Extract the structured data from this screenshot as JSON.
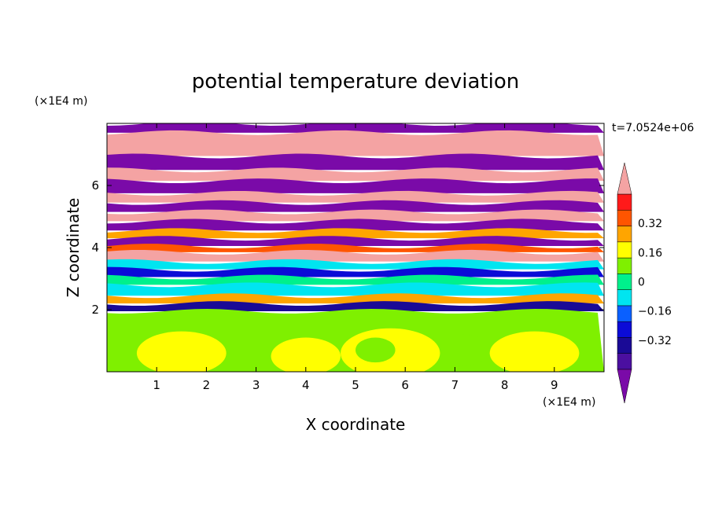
{
  "chart_data": {
    "type": "heatmap",
    "title": "potential temperature deviation",
    "xlabel": "X coordinate",
    "ylabel": "Z coordinate",
    "x_unit": "(×1E4 m)",
    "y_unit": "(×1E4 m)",
    "time_label": "t=7.0524e+06",
    "xlim": [
      0,
      10
    ],
    "ylim": [
      0,
      8
    ],
    "x_ticks": [
      "1",
      "2",
      "3",
      "4",
      "5",
      "6",
      "7",
      "8",
      "9"
    ],
    "y_ticks": [
      "2",
      "4",
      "6"
    ],
    "colorbar": {
      "levels": [
        -0.48,
        -0.4,
        -0.32,
        -0.24,
        -0.16,
        -0.08,
        0,
        0.08,
        0.16,
        0.24,
        0.32,
        0.4,
        0.48
      ],
      "tick_labels": [
        "0.32",
        "0.16",
        "0",
        "−0.16",
        "−0.32"
      ],
      "tick_values": [
        0.32,
        0.16,
        0,
        -0.16,
        -0.32
      ],
      "colors": [
        "#7a0aa8",
        "#4b0fa0",
        "#1a0a96",
        "#0b0bd7",
        "#0a60ff",
        "#00e5f0",
        "#00f08c",
        "#7ff000",
        "#ffff00",
        "#ffa500",
        "#ff5500",
        "#ff1a1a",
        "#f4a3a3"
      ],
      "extend": "both"
    },
    "field_bands": [
      {
        "z": [
          7.7,
          8.0
        ],
        "value": -0.5
      },
      {
        "z": [
          6.95,
          7.7
        ],
        "value": 0.5
      },
      {
        "z": [
          6.5,
          6.95
        ],
        "value": -0.5
      },
      {
        "z": [
          6.15,
          6.5
        ],
        "value": 0.5
      },
      {
        "z": [
          5.75,
          6.15
        ],
        "value": -0.5
      },
      {
        "z": [
          5.45,
          5.75
        ],
        "value": 0.5
      },
      {
        "z": [
          5.15,
          5.45
        ],
        "value": -0.5
      },
      {
        "z": [
          4.85,
          5.15
        ],
        "value": 0.5
      },
      {
        "z": [
          4.55,
          4.85
        ],
        "value": -0.5
      },
      {
        "z": [
          4.3,
          4.55
        ],
        "value": 0.2
      },
      {
        "z": [
          4.05,
          4.3
        ],
        "value": -0.5
      },
      {
        "z": [
          3.85,
          4.05
        ],
        "value": 0.3
      },
      {
        "z": [
          3.55,
          3.85
        ],
        "value": 0.4
      },
      {
        "z": [
          3.3,
          3.55
        ],
        "value": -0.1
      },
      {
        "z": [
          3.05,
          3.3
        ],
        "value": -0.3
      },
      {
        "z": [
          2.8,
          3.05
        ],
        "value": -0.08
      },
      {
        "z": [
          2.45,
          2.8
        ],
        "value": -0.1
      },
      {
        "z": [
          2.2,
          2.45
        ],
        "value": 0.2
      },
      {
        "z": [
          1.95,
          2.2
        ],
        "value": -0.35
      },
      {
        "z": [
          0,
          1.95
        ],
        "value": 0.04
      }
    ],
    "field_blobs": [
      {
        "x": 1.5,
        "z": 0.6,
        "rx": 0.9,
        "rz": 0.7,
        "value": 0.1
      },
      {
        "x": 4.0,
        "z": 0.5,
        "rx": 0.7,
        "rz": 0.6,
        "value": 0.1
      },
      {
        "x": 5.7,
        "z": 0.6,
        "rx": 1.0,
        "rz": 0.8,
        "value": 0.1
      },
      {
        "x": 8.6,
        "z": 0.6,
        "rx": 0.9,
        "rz": 0.7,
        "value": 0.1
      },
      {
        "x": 5.4,
        "z": 0.7,
        "rx": 0.4,
        "rz": 0.4,
        "value": 0.0
      },
      {
        "x": 7.2,
        "z": 0.7,
        "rx": 0.5,
        "rz": 0.5,
        "value": 0.0
      }
    ]
  }
}
